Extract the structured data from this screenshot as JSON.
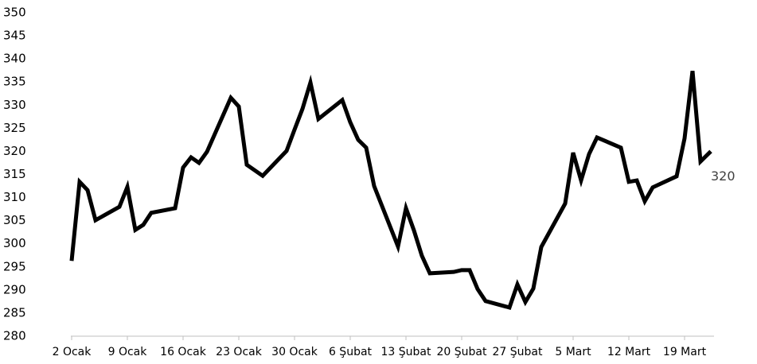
{
  "chart_data": {
    "type": "line",
    "x": [
      0,
      1,
      2,
      3,
      6,
      7,
      8,
      9,
      10,
      13,
      14,
      15,
      16,
      17,
      20,
      21,
      22,
      24,
      27,
      28,
      29,
      30,
      31,
      34,
      35,
      36,
      37,
      38,
      41,
      42,
      43,
      44,
      45,
      48,
      49,
      50,
      51,
      52,
      55,
      56,
      57,
      58,
      59,
      62,
      63,
      64,
      65,
      66,
      69,
      70,
      71,
      72,
      73,
      76,
      77,
      78,
      79,
      80.3
    ],
    "series": [
      {
        "name": null,
        "color": "#000000",
        "values": [
          296.3,
          313.4,
          311.6,
          305.1,
          308.0,
          312.3,
          303.0,
          304.1,
          306.7,
          307.7,
          316.5,
          318.7,
          317.5,
          319.9,
          331.6,
          329.7,
          317.1,
          314.7,
          320.1,
          324.7,
          329.2,
          334.9,
          327.0,
          331.1,
          326.3,
          322.5,
          320.8,
          312.5,
          299.4,
          307.7,
          302.9,
          297.4,
          293.6,
          293.9,
          294.3,
          294.3,
          290.2,
          287.6,
          286.2,
          291.2,
          287.4,
          290.3,
          299.3,
          308.7,
          319.7,
          313.7,
          319.4,
          323.0,
          320.8,
          313.4,
          313.7,
          309.2,
          312.2,
          314.6,
          322.8,
          337.4,
          317.8,
          320
        ]
      }
    ],
    "label_last": true,
    "xlim": [
      0,
      81
    ],
    "xticks": [
      {
        "value": 0,
        "label": "2 Ocak"
      },
      {
        "value": 7,
        "label": "9 Ocak"
      },
      {
        "value": 14,
        "label": "16 Ocak"
      },
      {
        "value": 21,
        "label": "23 Ocak"
      },
      {
        "value": 28,
        "label": "30 Ocak"
      },
      {
        "value": 35,
        "label": "6 Şubat"
      },
      {
        "value": 42,
        "label": "13 Şubat"
      },
      {
        "value": 49,
        "label": "20 Şubat"
      },
      {
        "value": 56,
        "label": "27 Şubat"
      },
      {
        "value": 63,
        "label": "5 Mart"
      },
      {
        "value": 70,
        "label": "12 Mart"
      },
      {
        "value": 77,
        "label": "19 Mart"
      }
    ],
    "ylim": [
      280,
      350
    ],
    "yticks": [
      280,
      285,
      290,
      295,
      300,
      305,
      310,
      315,
      320,
      325,
      330,
      335,
      340,
      345,
      350
    ],
    "grid": false
  }
}
